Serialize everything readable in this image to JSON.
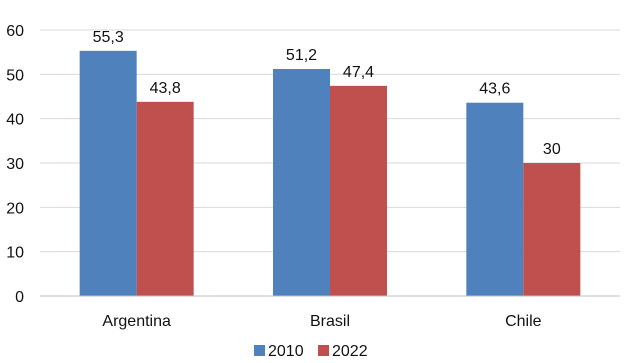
{
  "chart_data": {
    "type": "bar",
    "categories": [
      "Argentina",
      "Brasil",
      "Chile"
    ],
    "series": [
      {
        "name": "2010",
        "values": [
          55.3,
          51.2,
          43.6
        ],
        "labels": [
          "55,3",
          "51,2",
          "43,6"
        ],
        "color": "#4F81BD"
      },
      {
        "name": "2022",
        "values": [
          43.8,
          47.4,
          30
        ],
        "labels": [
          "43,8",
          "47,4",
          "30"
        ],
        "color": "#C0504D"
      }
    ],
    "yticks": [
      0,
      10,
      20,
      30,
      40,
      50,
      60
    ],
    "ylim": [
      0,
      60
    ],
    "grid": true,
    "gridColor": "#d9d9d9",
    "axisColor": "#bfbfbf",
    "legend_position": "bottom"
  }
}
